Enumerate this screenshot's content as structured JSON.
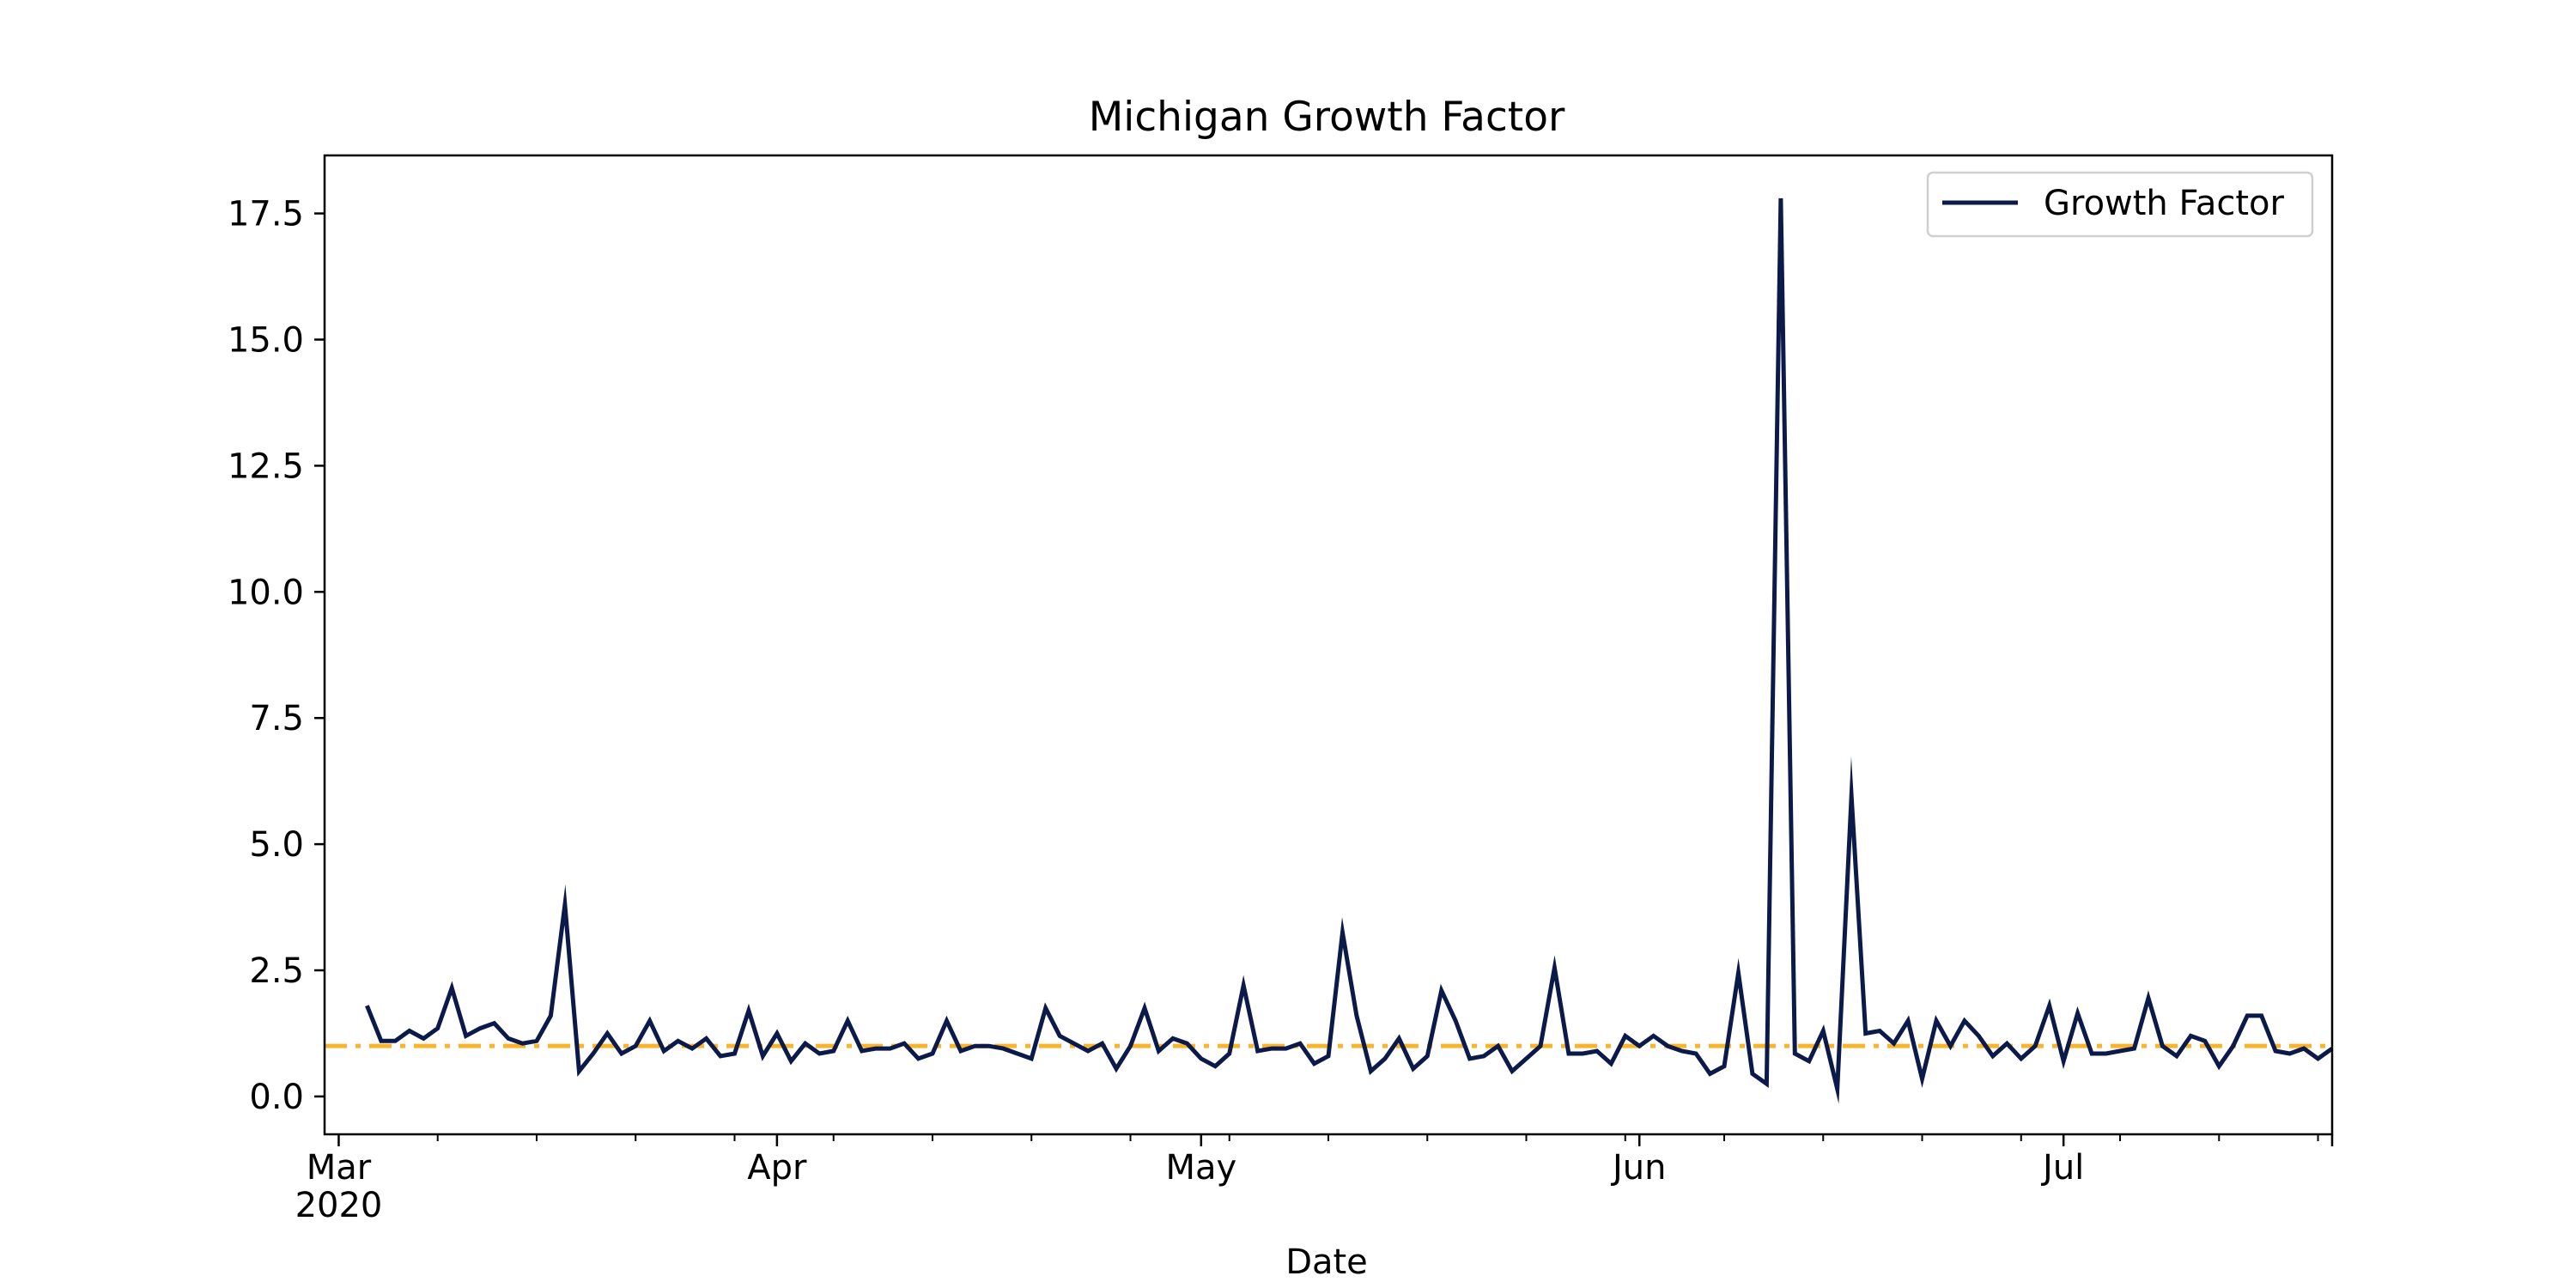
{
  "chart_data": {
    "type": "line",
    "title": "Michigan Growth Factor",
    "xlabel": "Date",
    "ylabel": "",
    "x_axis_type": "date",
    "x_start": "2020-03-01",
    "xlim": [
      "2020-02-29",
      "2020-07-20"
    ],
    "ylim": [
      -0.75,
      18.65
    ],
    "x_ticks": [
      {
        "date": "2020-03-01",
        "label": "Mar",
        "sublabel": "2020"
      },
      {
        "date": "2020-04-01",
        "label": "Apr",
        "sublabel": ""
      },
      {
        "date": "2020-05-01",
        "label": "May",
        "sublabel": ""
      },
      {
        "date": "2020-06-01",
        "label": "Jun",
        "sublabel": ""
      },
      {
        "date": "2020-07-01",
        "label": "Jul",
        "sublabel": ""
      }
    ],
    "y_ticks": [
      {
        "value": 0.0,
        "label": "0.0"
      },
      {
        "value": 2.5,
        "label": "2.5"
      },
      {
        "value": 5.0,
        "label": "5.0"
      },
      {
        "value": 7.5,
        "label": "7.5"
      },
      {
        "value": 10.0,
        "label": "10.0"
      },
      {
        "value": 12.5,
        "label": "12.5"
      },
      {
        "value": 15.0,
        "label": "15.0"
      },
      {
        "value": 17.5,
        "label": "17.5"
      }
    ],
    "grid": false,
    "legend": {
      "position": "upper right"
    },
    "reference_line": {
      "y": 1.0,
      "color": "#f9b42d",
      "style": "dash-dot"
    },
    "series": [
      {
        "name": "Growth Factor",
        "color": "#0c1a4a",
        "x": [
          "2020-03-03",
          "2020-03-04",
          "2020-03-05",
          "2020-03-06",
          "2020-03-07",
          "2020-03-08",
          "2020-03-09",
          "2020-03-10",
          "2020-03-11",
          "2020-03-12",
          "2020-03-13",
          "2020-03-14",
          "2020-03-15",
          "2020-03-16",
          "2020-03-17",
          "2020-03-18",
          "2020-03-19",
          "2020-03-20",
          "2020-03-21",
          "2020-03-22",
          "2020-03-23",
          "2020-03-24",
          "2020-03-25",
          "2020-03-26",
          "2020-03-27",
          "2020-03-28",
          "2020-03-29",
          "2020-03-30",
          "2020-03-31",
          "2020-04-01",
          "2020-04-02",
          "2020-04-03",
          "2020-04-04",
          "2020-04-05",
          "2020-04-06",
          "2020-04-07",
          "2020-04-08",
          "2020-04-09",
          "2020-04-10",
          "2020-04-11",
          "2020-04-12",
          "2020-04-13",
          "2020-04-14",
          "2020-04-15",
          "2020-04-16",
          "2020-04-17",
          "2020-04-18",
          "2020-04-19",
          "2020-04-20",
          "2020-04-21",
          "2020-04-22",
          "2020-04-23",
          "2020-04-24",
          "2020-04-25",
          "2020-04-26",
          "2020-04-27",
          "2020-04-28",
          "2020-04-29",
          "2020-04-30",
          "2020-05-01",
          "2020-05-02",
          "2020-05-03",
          "2020-05-04",
          "2020-05-05",
          "2020-05-06",
          "2020-05-07",
          "2020-05-08",
          "2020-05-09",
          "2020-05-10",
          "2020-05-11",
          "2020-05-12",
          "2020-05-13",
          "2020-05-14",
          "2020-05-15",
          "2020-05-16",
          "2020-05-17",
          "2020-05-18",
          "2020-05-19",
          "2020-05-20",
          "2020-05-21",
          "2020-05-22",
          "2020-05-23",
          "2020-05-24",
          "2020-05-25",
          "2020-05-26",
          "2020-05-27",
          "2020-05-28",
          "2020-05-29",
          "2020-05-30",
          "2020-05-31",
          "2020-06-01",
          "2020-06-02",
          "2020-06-03",
          "2020-06-04",
          "2020-06-05",
          "2020-06-06",
          "2020-06-07",
          "2020-06-08",
          "2020-06-09",
          "2020-06-10",
          "2020-06-11",
          "2020-06-12",
          "2020-06-13",
          "2020-06-14",
          "2020-06-15",
          "2020-06-16",
          "2020-06-17",
          "2020-06-18",
          "2020-06-19",
          "2020-06-20",
          "2020-06-21",
          "2020-06-22",
          "2020-06-23",
          "2020-06-24",
          "2020-06-25",
          "2020-06-26",
          "2020-06-27",
          "2020-06-28",
          "2020-06-29",
          "2020-06-30",
          "2020-07-01",
          "2020-07-02",
          "2020-07-03",
          "2020-07-04",
          "2020-07-05",
          "2020-07-06",
          "2020-07-07",
          "2020-07-08",
          "2020-07-09",
          "2020-07-10",
          "2020-07-11",
          "2020-07-12",
          "2020-07-13",
          "2020-07-14",
          "2020-07-15",
          "2020-07-16",
          "2020-07-17",
          "2020-07-18",
          "2020-07-19",
          "2020-07-20"
        ],
        "values": [
          1.8,
          1.1,
          1.1,
          1.3,
          1.15,
          1.35,
          2.15,
          1.2,
          1.35,
          1.45,
          1.15,
          1.05,
          1.1,
          1.6,
          3.8,
          0.5,
          0.85,
          1.25,
          0.85,
          1.0,
          1.5,
          0.9,
          1.1,
          0.95,
          1.15,
          0.8,
          0.85,
          1.7,
          0.8,
          1.25,
          0.7,
          1.05,
          0.85,
          0.9,
          1.5,
          0.9,
          0.95,
          0.95,
          1.05,
          0.75,
          0.85,
          1.5,
          0.9,
          1.0,
          1.0,
          0.95,
          0.85,
          0.75,
          1.75,
          1.2,
          1.05,
          0.9,
          1.05,
          0.55,
          1.0,
          1.75,
          0.9,
          1.15,
          1.05,
          0.75,
          0.6,
          0.85,
          2.2,
          0.9,
          0.95,
          0.95,
          1.05,
          0.65,
          0.8,
          3.25,
          1.6,
          0.5,
          0.75,
          1.15,
          0.55,
          0.8,
          2.1,
          1.5,
          0.75,
          0.8,
          1.0,
          0.5,
          0.75,
          1.0,
          2.55,
          0.85,
          0.85,
          0.9,
          0.65,
          1.2,
          1.0,
          1.2,
          1.0,
          0.9,
          0.85,
          0.45,
          0.6,
          2.45,
          0.45,
          0.25,
          17.8,
          0.85,
          0.7,
          1.3,
          0.15,
          5.95,
          1.25,
          1.3,
          1.05,
          1.5,
          0.35,
          1.5,
          1.0,
          1.5,
          1.2,
          0.8,
          1.05,
          0.75,
          1.0,
          1.8,
          0.7,
          1.65,
          0.85,
          0.85,
          0.9,
          0.95,
          1.95,
          1.0,
          0.8,
          1.2,
          1.1,
          0.6,
          1.0,
          1.6,
          1.6,
          0.9,
          0.85,
          0.95,
          0.75,
          0.95
        ]
      }
    ]
  }
}
